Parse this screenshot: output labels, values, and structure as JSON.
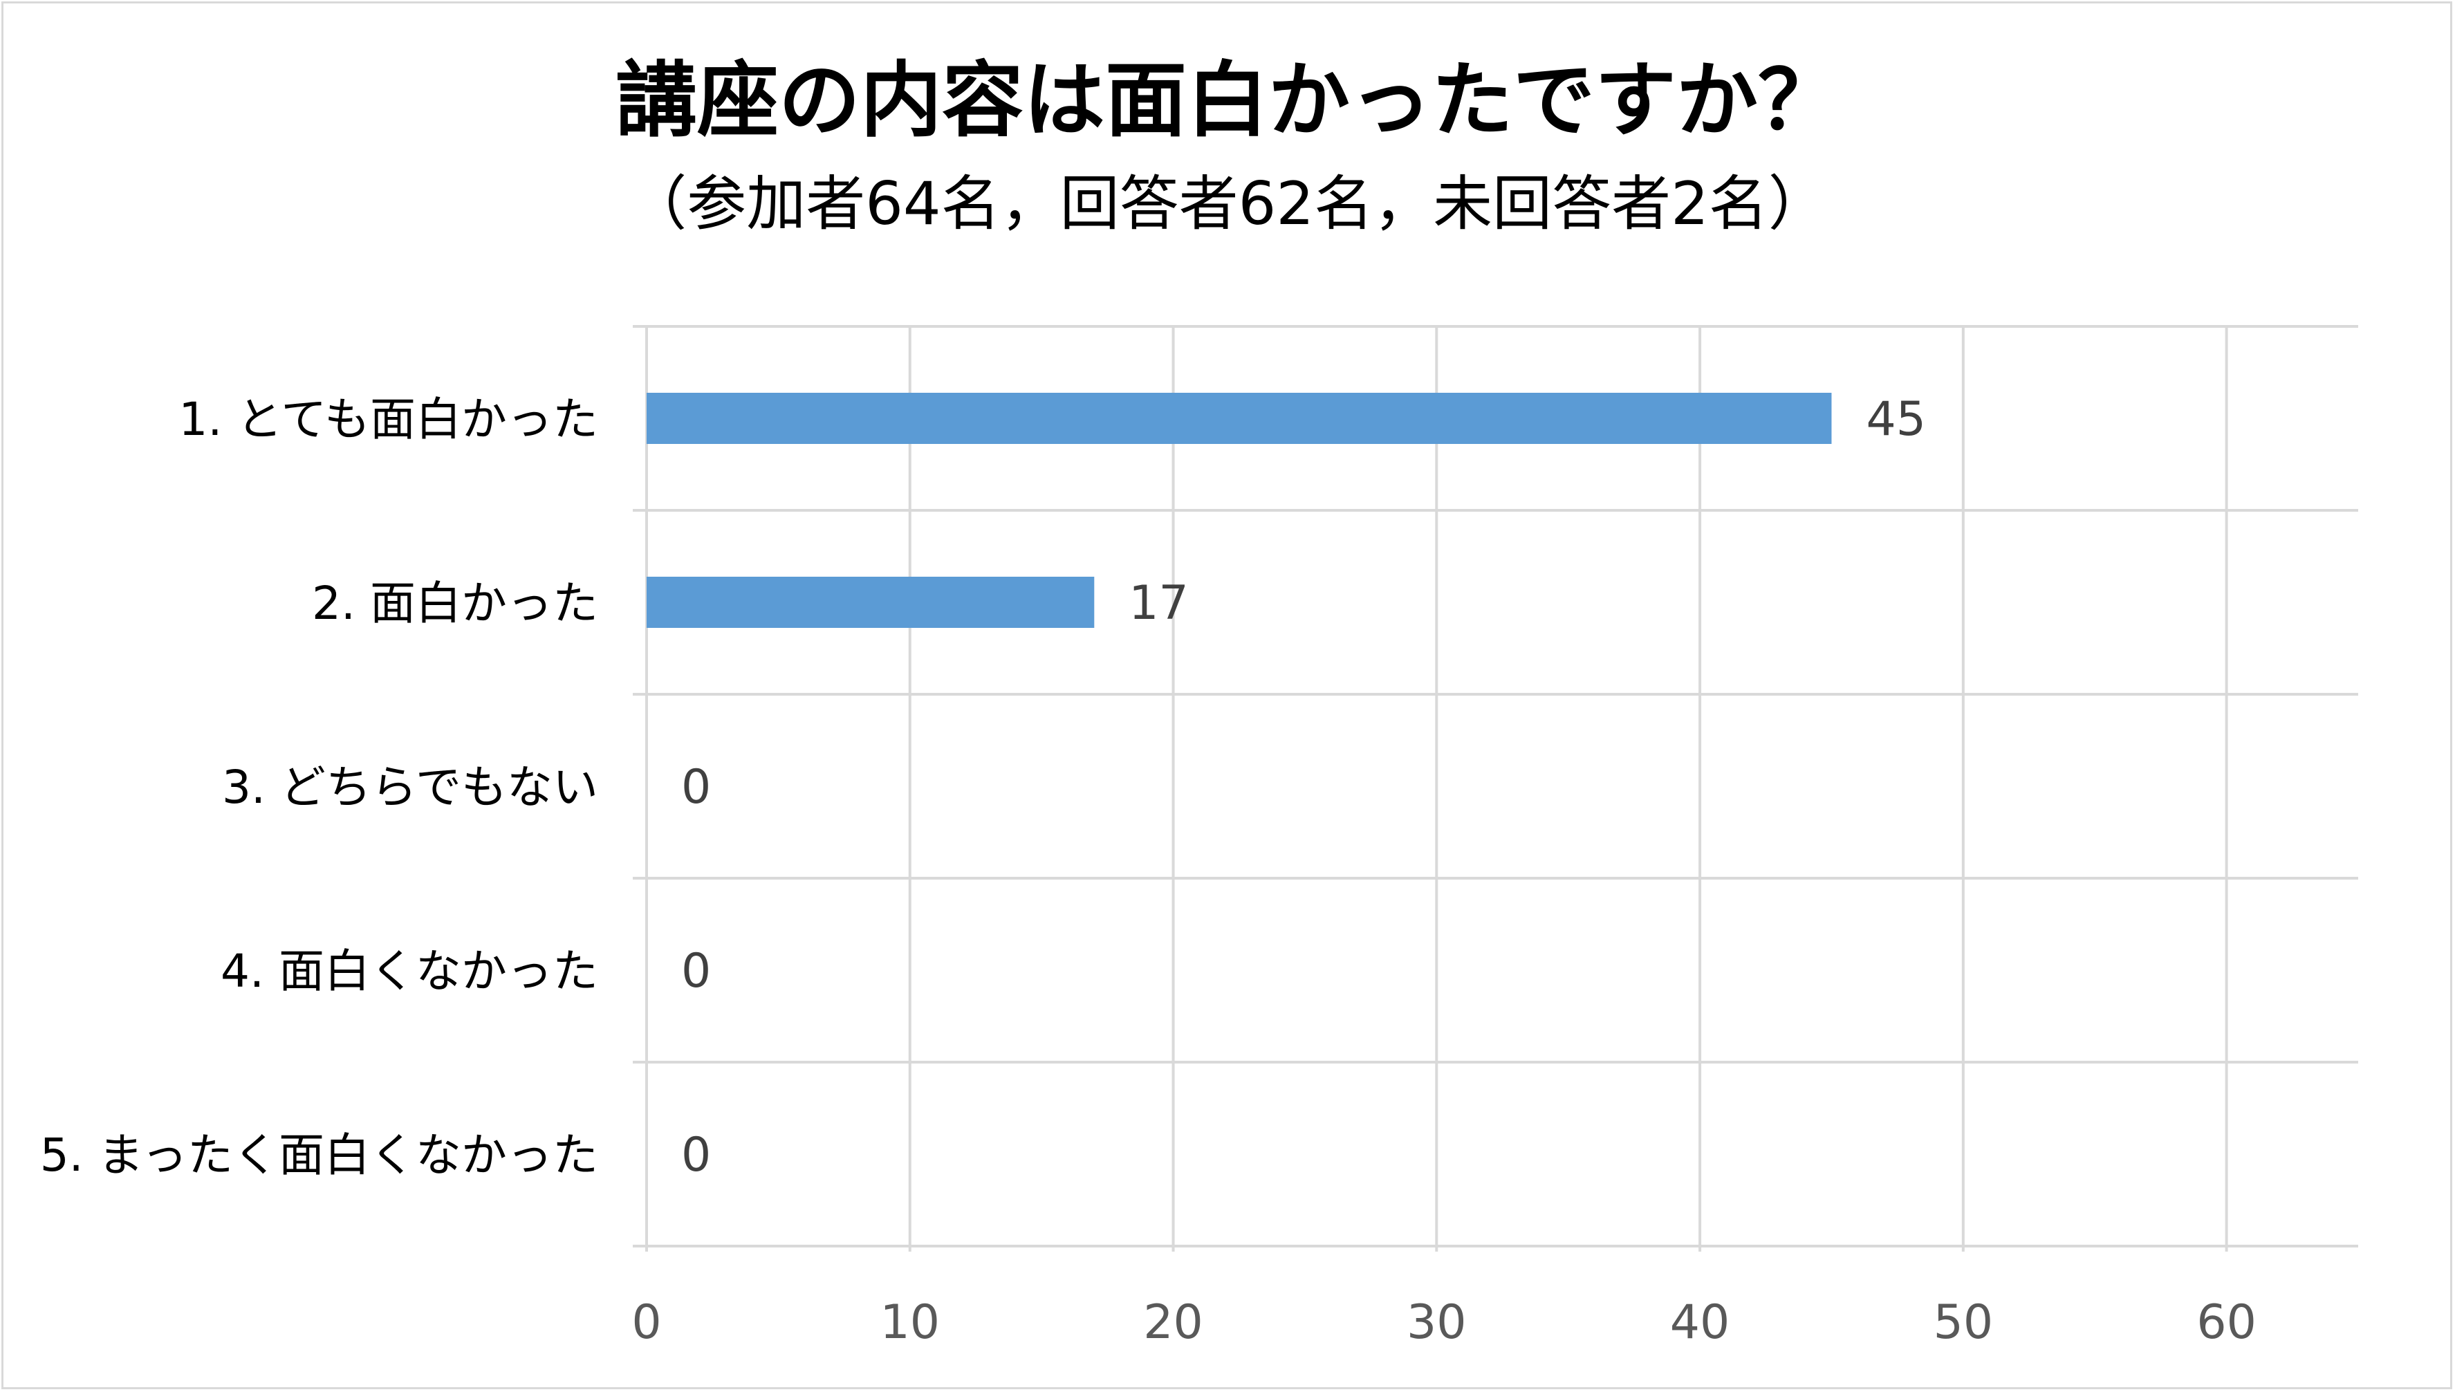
{
  "chart_data": {
    "type": "bar",
    "orientation": "horizontal",
    "title": "講座の内容は面白かったですか？",
    "subtitle": "（参加者64名，回答者62名，未回答者2名）",
    "categories": [
      "1. とても面白かった",
      "2. 面白かった",
      "3. どちらでもない",
      "4. 面白くなかった",
      "5. まったく面白くなかった"
    ],
    "values": [
      45,
      17,
      0,
      0,
      0
    ],
    "xlim": [
      0,
      65
    ],
    "xticks": [
      0,
      10,
      20,
      30,
      40,
      50,
      60
    ],
    "grid": true,
    "legend": "none",
    "bar_color": "#5b9bd5",
    "grid_color": "#d9d9d9"
  }
}
